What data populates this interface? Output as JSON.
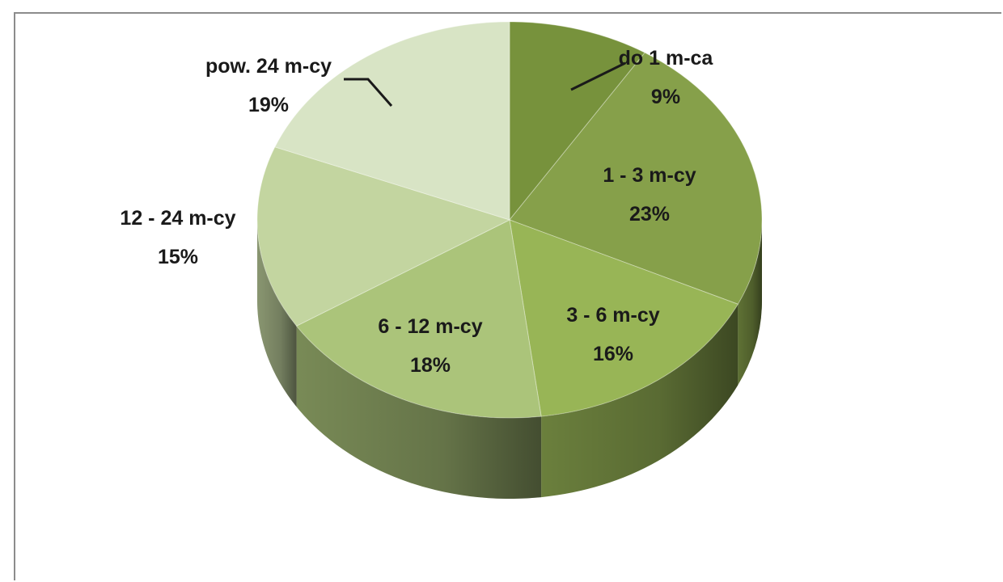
{
  "chart_data": {
    "type": "pie",
    "style": "3d",
    "title": "",
    "slices": [
      {
        "label": "do 1 m-ca",
        "value": 9,
        "value_label": "9%",
        "color": "#77923c"
      },
      {
        "label": "1 - 3 m-cy",
        "value": 23,
        "value_label": "23%",
        "color": "#86a04a"
      },
      {
        "label": "3 - 6 m-cy",
        "value": 16,
        "value_label": "16%",
        "color": "#98b556"
      },
      {
        "label": "6 - 12 m-cy",
        "value": 18,
        "value_label": "18%",
        "color": "#abc47a"
      },
      {
        "label": "12 - 24 m-cy",
        "value": 15,
        "value_label": "15%",
        "color": "#c3d5a0"
      },
      {
        "label": "pow. 24 m-cy",
        "value": 19,
        "value_label": "19%",
        "color": "#d8e4c5"
      }
    ],
    "legend": "none",
    "labels": "on-slice-and-outside-with-leader"
  }
}
